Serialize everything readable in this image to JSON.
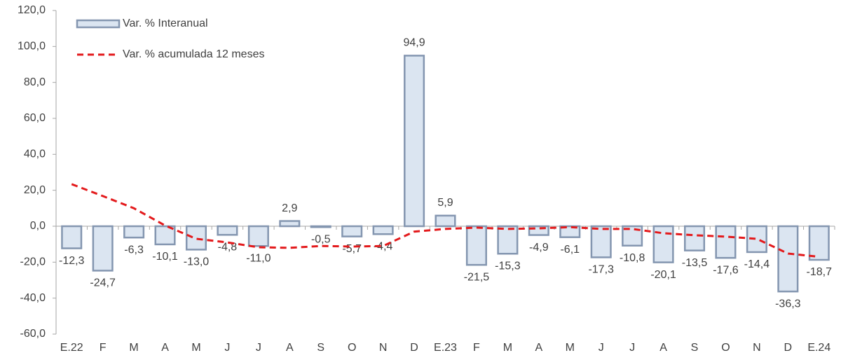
{
  "chart_data": {
    "type": "bar",
    "categories": [
      "E.22",
      "F",
      "M",
      "A",
      "M",
      "J",
      "J",
      "A",
      "S",
      "O",
      "N",
      "D",
      "E.23",
      "F",
      "M",
      "A",
      "M",
      "J",
      "J",
      "A",
      "S",
      "O",
      "N",
      "D",
      "E.24"
    ],
    "series": [
      {
        "name": "Var. % Interanual",
        "type": "bar",
        "color": "#dbe5f1",
        "stroke": "#8496b0",
        "values": [
          -12.3,
          -24.7,
          -6.3,
          -10.1,
          -13.0,
          -4.8,
          -11.0,
          2.9,
          -0.5,
          -5.7,
          -4.4,
          94.9,
          5.9,
          -21.5,
          -15.3,
          -4.9,
          -6.1,
          -17.3,
          -10.8,
          -20.1,
          -13.5,
          -17.6,
          -14.4,
          -36.3,
          -18.7
        ],
        "value_labels": [
          "-12,3",
          "-24,7",
          "-6,3",
          "-10,1",
          "-13,0",
          "-4,8",
          "-11,0",
          "2,9",
          "-0,5",
          "-5,7",
          "-4,4",
          "94,9",
          "5,9",
          "-21,5",
          "-15,3",
          "-4,9",
          "-6,1",
          "-17,3",
          "-10,8",
          "-20,1",
          "-13,5",
          "-17,6",
          "-14,4",
          "-36,3",
          "-18,7"
        ]
      },
      {
        "name": "Var. % acumulada  12 meses",
        "type": "line",
        "color": "#e31a1c",
        "dashed": true,
        "values": [
          23.4,
          16.8,
          10.0,
          0.4,
          -7.0,
          -9.0,
          -11.7,
          -12.0,
          -11.0,
          -11.3,
          -11.0,
          -3.0,
          -1.5,
          -0.8,
          -1.5,
          -1.2,
          -0.5,
          -1.5,
          -1.5,
          -3.9,
          -5.0,
          -5.8,
          -7.0,
          -15.2,
          -17.0
        ]
      }
    ],
    "ylim": [
      -60,
      120
    ],
    "yticks": [
      {
        "value": -60,
        "label": "-60,0"
      },
      {
        "value": -40,
        "label": "-40,0"
      },
      {
        "value": -20,
        "label": "-20,0"
      },
      {
        "value": 0,
        "label": "0,0"
      },
      {
        "value": 20,
        "label": "20,0"
      },
      {
        "value": 40,
        "label": "40,0"
      },
      {
        "value": 60,
        "label": "60,0"
      },
      {
        "value": 80,
        "label": "80,0"
      },
      {
        "value": 100,
        "label": "100,0"
      },
      {
        "value": 120,
        "label": "120,0"
      }
    ],
    "grid": false,
    "legend": "upper left"
  }
}
